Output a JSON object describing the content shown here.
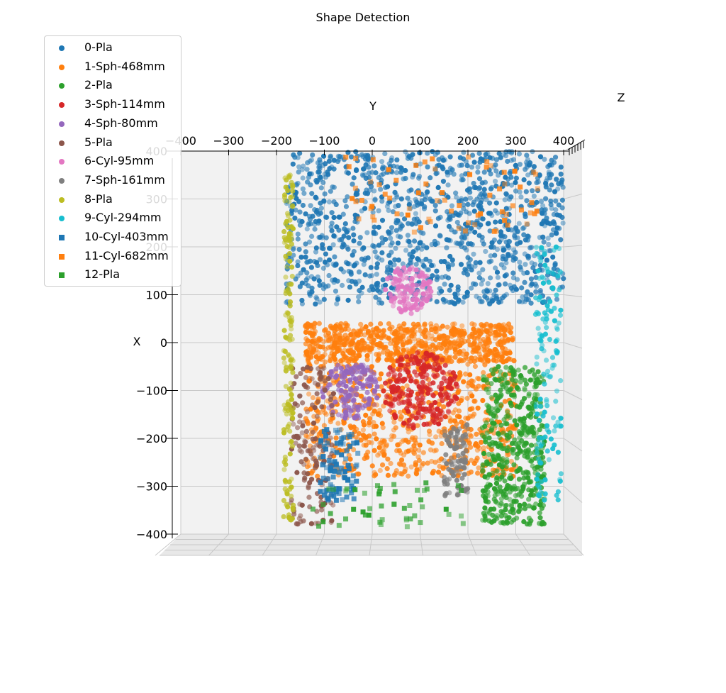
{
  "chart_data": {
    "type": "scatter",
    "title": "Shape Detection",
    "xlabel": "X",
    "ylabel": "Y",
    "zlabel": "Z",
    "projection": "3d",
    "grid": true,
    "legend_position": "upper-left",
    "y_ticks": [
      "−400",
      "−300",
      "−200",
      "−100",
      "0",
      "100",
      "200",
      "300",
      "400"
    ],
    "x_ticks": [
      "400",
      "300",
      "200",
      "100",
      "0",
      "−100",
      "−200",
      "−300",
      "−400"
    ],
    "ylim": [
      -400,
      400
    ],
    "xlim": [
      -400,
      400
    ],
    "series": [
      {
        "name": "0-Pla",
        "marker": "circle",
        "color": "#1f77b4",
        "count": 1200,
        "region": {
          "y": [
            -180,
            400
          ],
          "x": [
            80,
            400
          ]
        }
      },
      {
        "name": "1-Sph-468mm",
        "marker": "circle",
        "color": "#ff7f0e",
        "count": 1400,
        "region": {
          "y": [
            -140,
            300
          ],
          "x": [
            -280,
            30
          ]
        },
        "cap": {
          "y": [
            -140,
            290
          ],
          "x": [
            -40,
            40
          ]
        }
      },
      {
        "name": "2-Pla",
        "marker": "circle",
        "color": "#2ca02c",
        "count": 500,
        "region": {
          "y": [
            230,
            360
          ],
          "x": [
            -380,
            -50
          ]
        }
      },
      {
        "name": "3-Sph-114mm",
        "marker": "circle",
        "color": "#d62728",
        "count": 260,
        "center": [
          100,
          -100
        ],
        "radius": 80
      },
      {
        "name": "4-Sph-80mm",
        "marker": "circle",
        "color": "#9467bd",
        "count": 150,
        "center": [
          -45,
          -100
        ],
        "radius": 60
      },
      {
        "name": "5-Pla",
        "marker": "circle",
        "color": "#8c564b",
        "count": 150,
        "region": {
          "y": [
            -170,
            -80
          ],
          "x": [
            -380,
            -50
          ]
        }
      },
      {
        "name": "6-Cyl-95mm",
        "marker": "circle",
        "color": "#e377c2",
        "count": 130,
        "center": [
          75,
          110
        ],
        "radius": 50
      },
      {
        "name": "7-Sph-161mm",
        "marker": "circle",
        "color": "#7f7f7f",
        "count": 100,
        "region": {
          "y": [
            150,
            200
          ],
          "x": [
            -320,
            -170
          ]
        }
      },
      {
        "name": "8-Pla",
        "marker": "circle",
        "color": "#bcbd22",
        "count": 160,
        "region": {
          "y": [
            -185,
            -165
          ],
          "x": [
            -380,
            350
          ]
        }
      },
      {
        "name": "9-Cyl-294mm",
        "marker": "circle",
        "color": "#17becf",
        "count": 140,
        "region": {
          "y": [
            340,
            395
          ],
          "x": [
            -330,
            200
          ]
        }
      },
      {
        "name": "10-Cyl-403mm",
        "marker": "square",
        "color": "#1f77b4",
        "count": 90,
        "region": {
          "y": [
            -110,
            -30
          ],
          "x": [
            -330,
            -180
          ]
        }
      },
      {
        "name": "11-Cyl-682mm",
        "marker": "square",
        "color": "#ff7f0e",
        "count": 70,
        "region": {
          "y": [
            -70,
            350
          ],
          "x": [
            230,
            390
          ]
        }
      },
      {
        "name": "12-Pla",
        "marker": "square",
        "color": "#2ca02c",
        "count": 50,
        "region": {
          "y": [
            -130,
            200
          ],
          "x": [
            -390,
            -290
          ]
        }
      }
    ]
  }
}
